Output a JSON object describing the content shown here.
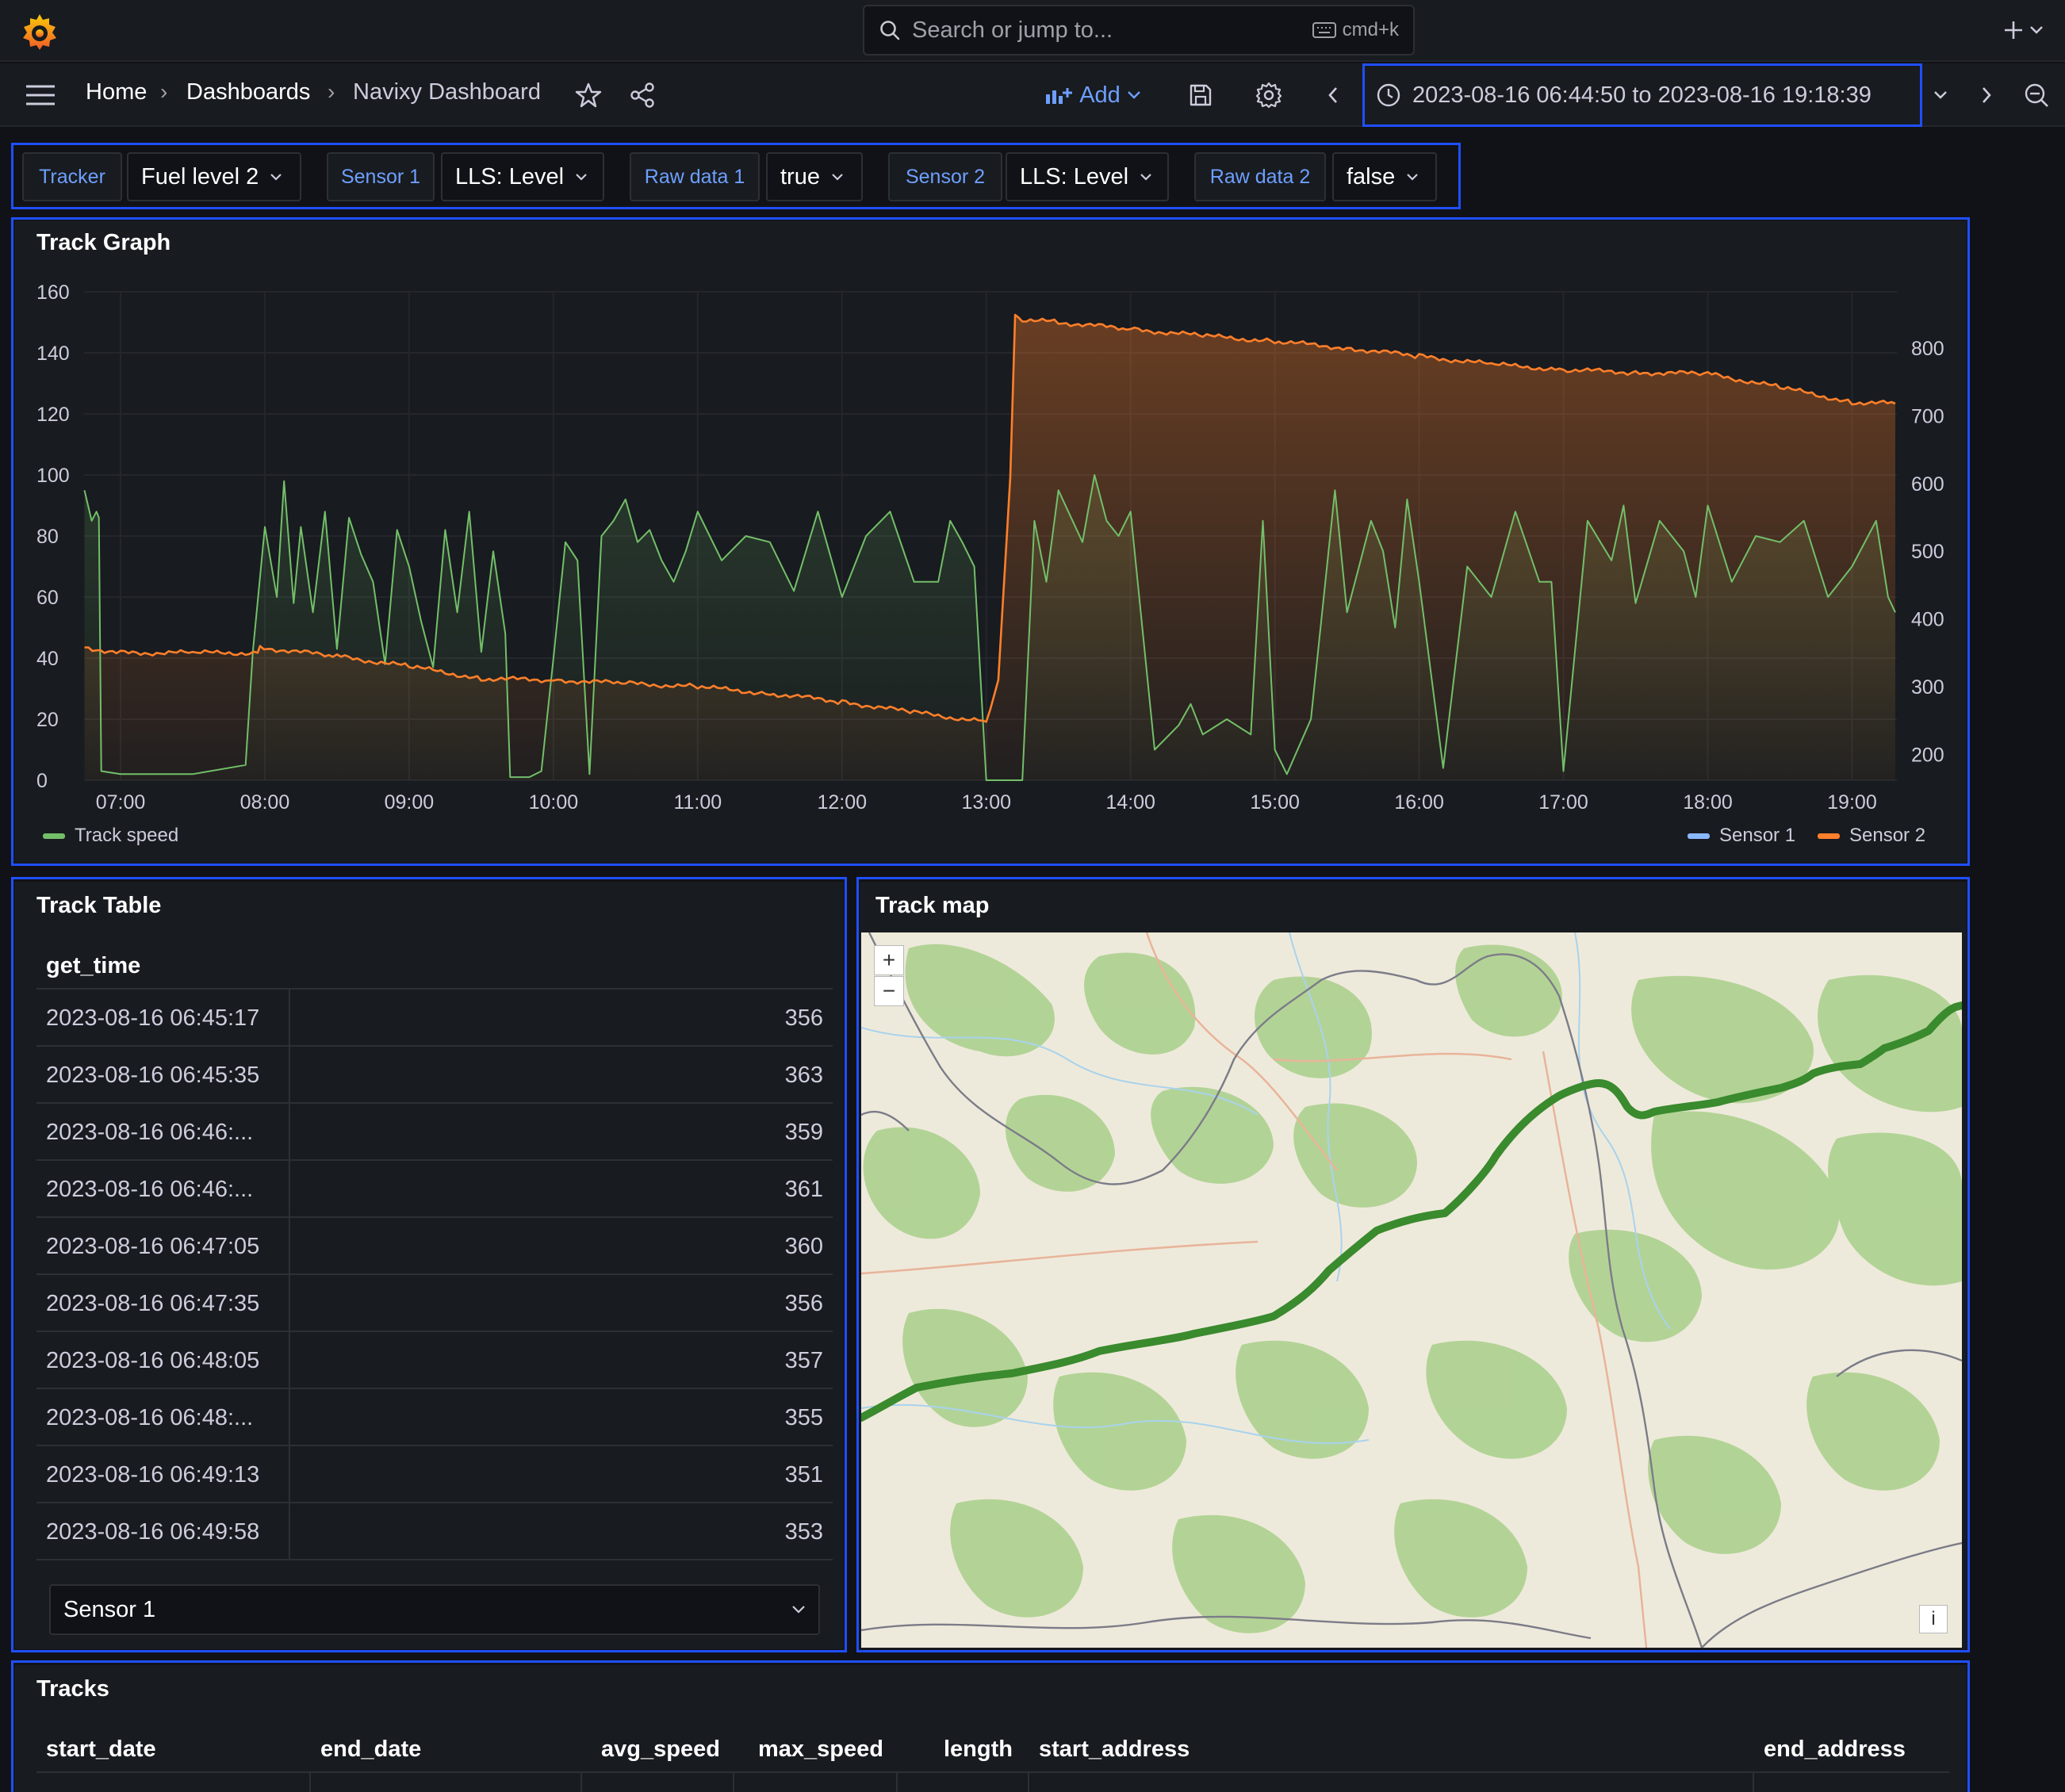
{
  "topbar": {
    "search_placeholder": "Search or jump to...",
    "shortcut": "cmd+k",
    "add_icon": "plus-icon"
  },
  "breadcrumbs": [
    "Home",
    "Dashboards",
    "Navixy Dashboard"
  ],
  "toolbar": {
    "add_label": "Add",
    "time_range": "2023-08-16 06:44:50 to 2023-08-16 19:18:39"
  },
  "variables": [
    {
      "label": "Tracker",
      "value": "Fuel level 2"
    },
    {
      "label": "Sensor 1",
      "value": "LLS: Level"
    },
    {
      "label": "Raw data 1",
      "value": "true"
    },
    {
      "label": "Sensor 2",
      "value": "LLS: Level"
    },
    {
      "label": "Raw data 2",
      "value": "false"
    }
  ],
  "track_graph": {
    "title": "Track Graph",
    "legend_left": "Track speed",
    "legend_right": [
      "Sensor 1",
      "Sensor 2"
    ],
    "colors": {
      "speed": "#73bf69",
      "sensor1": "#8ab8ff",
      "sensor2": "#ff7f2a"
    }
  },
  "chart_data": {
    "type": "line",
    "title": "Track Graph",
    "x_ticks": [
      "07:00",
      "08:00",
      "09:00",
      "10:00",
      "11:00",
      "12:00",
      "13:00",
      "14:00",
      "15:00",
      "16:00",
      "17:00",
      "18:00",
      "19:00"
    ],
    "y_left_ticks": [
      "0",
      "20",
      "40",
      "60",
      "80",
      "100",
      "120",
      "140",
      "160"
    ],
    "y_right_ticks": [
      "200",
      "300",
      "400",
      "500",
      "600",
      "700",
      "800"
    ],
    "ylim_left": [
      0,
      160
    ],
    "ylim_right": [
      162,
      883
    ],
    "grid": true,
    "series": [
      {
        "name": "Track speed",
        "axis": "left",
        "x": [
          "06:45",
          "06:48",
          "06:50",
          "06:51",
          "06:52",
          "07:00",
          "07:30",
          "07:52",
          "07:55",
          "08:00",
          "08:05",
          "08:08",
          "08:12",
          "08:15",
          "08:20",
          "08:25",
          "08:30",
          "08:35",
          "08:40",
          "08:45",
          "08:50",
          "08:55",
          "09:00",
          "09:05",
          "09:10",
          "09:15",
          "09:20",
          "09:25",
          "09:30",
          "09:35",
          "09:40",
          "09:42",
          "09:50",
          "09:55",
          "10:00",
          "10:05",
          "10:10",
          "10:15",
          "10:20",
          "10:25",
          "10:30",
          "10:35",
          "10:40",
          "10:45",
          "10:50",
          "10:55",
          "11:00",
          "11:10",
          "11:20",
          "11:30",
          "11:40",
          "11:50",
          "12:00",
          "12:10",
          "12:20",
          "12:30",
          "12:40",
          "12:45",
          "12:50",
          "12:55",
          "13:00",
          "13:15",
          "13:20",
          "13:25",
          "13:30",
          "13:40",
          "13:45",
          "13:50",
          "13:55",
          "14:00",
          "14:10",
          "14:20",
          "14:25",
          "14:30",
          "14:40",
          "14:50",
          "14:55",
          "15:00",
          "15:05",
          "15:15",
          "15:25",
          "15:30",
          "15:40",
          "15:45",
          "15:50",
          "15:55",
          "16:00",
          "16:10",
          "16:20",
          "16:30",
          "16:40",
          "16:50",
          "16:55",
          "17:00",
          "17:10",
          "17:20",
          "17:25",
          "17:30",
          "17:40",
          "17:50",
          "17:55",
          "18:00",
          "18:10",
          "18:20",
          "18:30",
          "18:40",
          "18:50",
          "19:00",
          "19:10",
          "19:15",
          "19:18"
        ],
        "values": [
          95,
          85,
          88,
          86,
          3,
          2,
          2,
          5,
          42,
          83,
          60,
          98,
          58,
          83,
          55,
          88,
          43,
          86,
          74,
          65,
          38,
          82,
          70,
          52,
          37,
          82,
          55,
          88,
          42,
          75,
          48,
          1,
          1,
          3,
          40,
          78,
          72,
          2,
          80,
          85,
          92,
          78,
          82,
          72,
          65,
          75,
          88,
          72,
          80,
          78,
          62,
          88,
          60,
          80,
          88,
          65,
          65,
          85,
          78,
          70,
          0,
          0,
          85,
          65,
          95,
          78,
          100,
          85,
          80,
          88,
          10,
          18,
          25,
          15,
          20,
          15,
          85,
          10,
          2,
          20,
          95,
          55,
          85,
          75,
          50,
          92,
          65,
          4,
          70,
          60,
          88,
          65,
          65,
          3,
          85,
          72,
          90,
          58,
          85,
          75,
          60,
          90,
          65,
          80,
          78,
          85,
          60,
          70,
          85,
          60,
          55
        ]
      },
      {
        "name": "Sensor 1",
        "axis": "right",
        "x": [],
        "values": []
      },
      {
        "name": "Sensor 2",
        "axis": "right",
        "x": [
          "06:45",
          "07:00",
          "07:30",
          "07:57",
          "07:58",
          "08:30",
          "09:00",
          "09:30",
          "10:00",
          "10:30",
          "11:00",
          "11:30",
          "12:00",
          "12:30",
          "13:00",
          "13:05",
          "13:10",
          "13:12",
          "13:15",
          "13:30",
          "14:00",
          "14:30",
          "15:00",
          "15:30",
          "16:00",
          "16:30",
          "17:00",
          "17:30",
          "18:00",
          "18:30",
          "19:00",
          "19:18"
        ],
        "values": [
          358,
          350,
          350,
          350,
          358,
          345,
          330,
          312,
          310,
          305,
          300,
          290,
          278,
          262,
          248,
          310,
          610,
          848,
          842,
          838,
          828,
          818,
          810,
          800,
          788,
          776,
          768,
          764,
          762,
          742,
          720,
          718
        ]
      }
    ]
  },
  "track_table": {
    "title": "Track Table",
    "column": "get_time",
    "rows": [
      {
        "time": "2023-08-16 06:45:17",
        "value": "356"
      },
      {
        "time": "2023-08-16 06:45:35",
        "value": "363"
      },
      {
        "time": "2023-08-16 06:46:...",
        "value": "359"
      },
      {
        "time": "2023-08-16 06:46:...",
        "value": "361"
      },
      {
        "time": "2023-08-16 06:47:05",
        "value": "360"
      },
      {
        "time": "2023-08-16 06:47:35",
        "value": "356"
      },
      {
        "time": "2023-08-16 06:48:05",
        "value": "357"
      },
      {
        "time": "2023-08-16 06:48:...",
        "value": "355"
      },
      {
        "time": "2023-08-16 06:49:13",
        "value": "351"
      },
      {
        "time": "2023-08-16 06:49:58",
        "value": "353"
      }
    ],
    "sensor_select": "Sensor 1"
  },
  "track_map": {
    "title": "Track map",
    "zoom_in": "+",
    "zoom_out": "−",
    "info": "i",
    "route_color": "#3a8a2e"
  },
  "tracks": {
    "title": "Tracks",
    "columns": [
      "start_date",
      "end_date",
      "avg_speed",
      "max_speed",
      "length",
      "start_address",
      "end_address"
    ]
  }
}
